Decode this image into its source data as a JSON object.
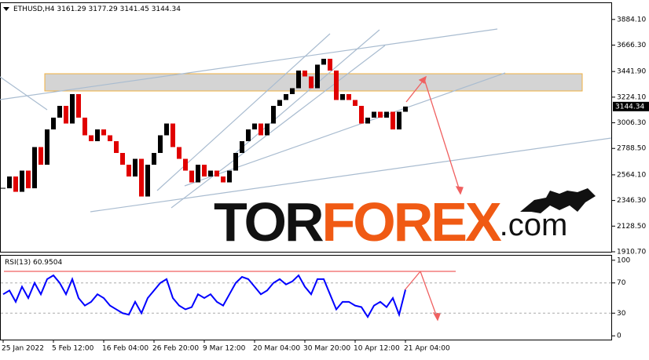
{
  "header": {
    "symbol": "ETHUSD,H4",
    "ohlc": [
      3161.29,
      3177.29,
      3141.45,
      3144.34
    ]
  },
  "logo": {
    "part1": "TOR",
    "part2": "FOREX",
    "part3": ".com"
  },
  "chart_data": [
    {
      "type": "candlestick",
      "categories": [
        "25 Jan 2022",
        null,
        null,
        null,
        null,
        null,
        null,
        null,
        "5 Feb 12:00",
        null,
        null,
        null,
        null,
        null,
        null,
        null,
        "16 Feb 04:00",
        null,
        null,
        null,
        null,
        null,
        null,
        null,
        "26 Feb 20:00",
        null,
        null,
        null,
        null,
        null,
        null,
        null,
        "9 Mar 12:00",
        null,
        null,
        null,
        null,
        null,
        null,
        null,
        "20 Mar 04:00",
        null,
        null,
        null,
        null,
        null,
        null,
        null,
        "30 Mar 20:00",
        null,
        null,
        null,
        null,
        null,
        null,
        null,
        "10 Apr 12:00",
        null,
        null,
        null,
        null,
        null,
        null,
        null,
        "21 Apr 04:00"
      ],
      "series": [
        {
          "up_color": "#000000",
          "down_color": "#e00000",
          "values": [
            2450,
            2550,
            2420,
            2600,
            2450,
            2800,
            2650,
            2950,
            3050,
            3150,
            3000,
            3250,
            3050,
            2900,
            2850,
            2950,
            2900,
            2850,
            2750,
            2650,
            2550,
            2700,
            2380,
            2650,
            2750,
            2900,
            3000,
            2800,
            2700,
            2600,
            2500,
            2650,
            2550,
            2600,
            2550,
            2500,
            2600,
            2750,
            2850,
            2950,
            3000,
            2900,
            3000,
            3150,
            3200,
            3250,
            3300,
            3450,
            3400,
            3300,
            3500,
            3550,
            3450,
            3200,
            3250,
            3200,
            3150,
            3000,
            3050,
            3100,
            3050,
            3100,
            2950,
            3100,
            3144.34
          ]
        }
      ],
      "ylim": [
        1904,
        4016
      ],
      "yticks": [
        {
          "value": 1910.7,
          "label": "1910.70"
        },
        {
          "value": 2128.5,
          "label": "2128.50"
        },
        {
          "value": 2346.3,
          "label": "2346.30"
        },
        {
          "value": 2564.1,
          "label": "2564.10"
        },
        {
          "value": 2788.5,
          "label": "2788.50"
        },
        {
          "value": 3006.3,
          "label": "3006.30"
        },
        {
          "value": 3224.1,
          "label": "3224.10"
        },
        {
          "value": 3441.9,
          "label": "3441.90"
        },
        {
          "value": 3666.3,
          "label": "3666.30"
        },
        {
          "value": 3884.1,
          "label": "3884.10"
        }
      ]
    },
    {
      "type": "line",
      "title": "RSI(13)",
      "series": [
        {
          "color": "#0000ff",
          "values": [
            55,
            60,
            45,
            65,
            50,
            70,
            55,
            75,
            80,
            70,
            55,
            75,
            50,
            40,
            45,
            55,
            50,
            40,
            35,
            30,
            28,
            45,
            30,
            50,
            60,
            70,
            75,
            50,
            40,
            35,
            38,
            55,
            50,
            55,
            45,
            40,
            55,
            70,
            78,
            75,
            65,
            55,
            60,
            70,
            75,
            68,
            72,
            80,
            65,
            55,
            75,
            75,
            55,
            35,
            45,
            45,
            40,
            38,
            25,
            40,
            45,
            38,
            50,
            28,
            60.9504
          ]
        }
      ],
      "ylim": [
        -5,
        105
      ],
      "yticks": [
        0,
        30,
        70,
        100
      ]
    }
  ]
}
